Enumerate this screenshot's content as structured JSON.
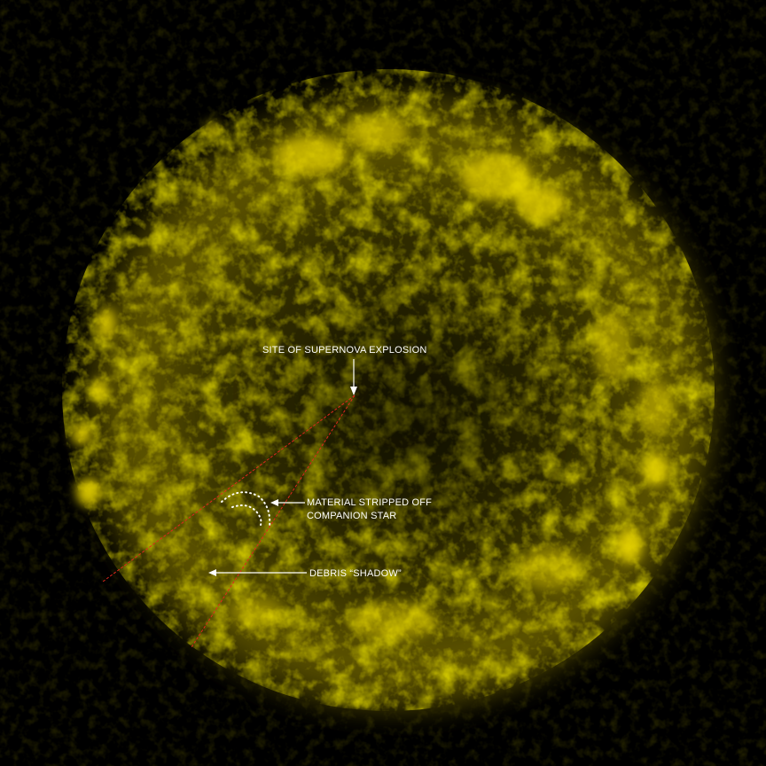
{
  "image": {
    "subject": "supernova-remnant",
    "colors": {
      "background": "#000000",
      "glow": "#d4c200",
      "shadow_lines": "#e0281e",
      "annotation": "#ffffff"
    }
  },
  "annotations": {
    "site": "SITE OF SUPERNOVA EXPLOSION",
    "material_line1": "MATERIAL STRIPPED OFF",
    "material_line2": "COMPANION STAR",
    "debris": "DEBRIS “SHADOW”"
  }
}
